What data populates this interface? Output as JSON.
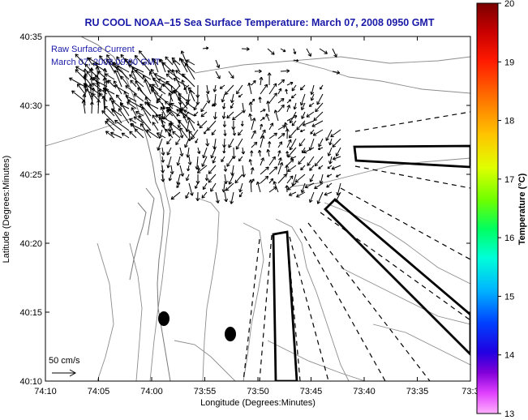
{
  "title": "RU COOL  NOAA–15  Sea Surface Temperature:  March 07, 2008 0950 GMT",
  "legend": {
    "line1": "Raw Surface Current",
    "line2": "March 07, 2008 09:00 GMT"
  },
  "scale_label": "50 cm/s",
  "xlabel": "Longitude (Degrees:Minutes)",
  "ylabel": "Latitude (Degrees:Minutes)",
  "x_ticks": [
    "74:10",
    "74:05",
    "74:00",
    "73:55",
    "73:50",
    "73:45",
    "73:40",
    "73:35",
    "73:3"
  ],
  "y_ticks": [
    "40:35",
    "40:30",
    "40:25",
    "40:20",
    "40:15",
    "40:10"
  ],
  "colorbar": {
    "label": "Temperature (°C)",
    "ticks": [
      "20",
      "19",
      "18",
      "17",
      "16",
      "15",
      "14",
      "13"
    ],
    "range": [
      13,
      20
    ]
  },
  "colors": {
    "title": "#1a1aa8",
    "legend": "#1a1aa8",
    "land": "#ffffff",
    "contour": "#8c8c8c"
  }
}
